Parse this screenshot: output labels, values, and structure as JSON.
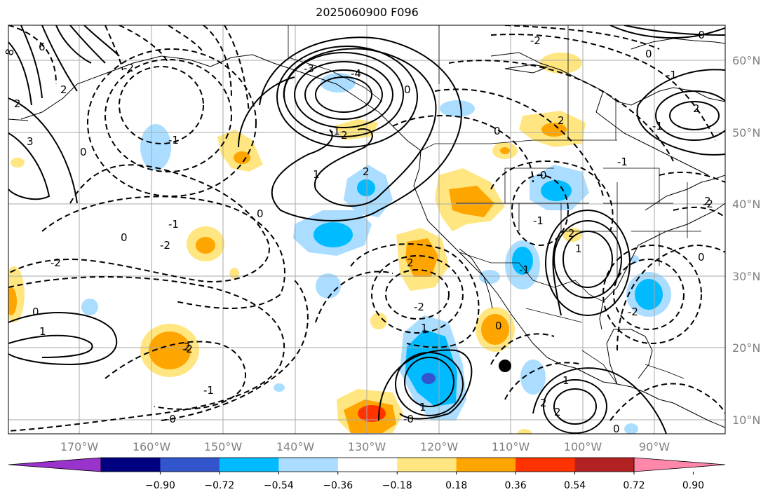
{
  "title": "2025060900 F096",
  "longitude_labels": [
    "170°W",
    "160°W",
    "150°W",
    "140°W",
    "130°W",
    "120°W",
    "110°W",
    "100°W",
    "90°W"
  ],
  "latitude_labels": [
    "60°N",
    "50°N",
    "40°N",
    "30°N",
    "20°N",
    "10°N"
  ],
  "colorbar": {
    "ticks": [
      "−0.90",
      "−0.72",
      "−0.54",
      "−0.36",
      "−0.18",
      "0.18",
      "0.36",
      "0.54",
      "0.72",
      "0.90"
    ],
    "colors": [
      "#9933cc",
      "#000080",
      "#3355cc",
      "#00bbff",
      "#aaddff",
      "#ffffff",
      "#ffe680",
      "#ffa500",
      "#ff3300",
      "#b22222",
      "#ff88aa"
    ]
  },
  "contour_labels": [
    "8",
    "6",
    "2",
    "-2",
    "3",
    "0",
    "2",
    "-3",
    "-4",
    "0",
    "-2",
    "0",
    "-1",
    "1",
    "2",
    "-1",
    "0",
    "2",
    "-1",
    "0",
    "-1",
    "2",
    "-1",
    "-2",
    "2",
    "-1",
    "-2",
    "0",
    "1",
    "-2",
    "-1",
    "-0",
    "1",
    "1",
    "-1",
    "1",
    "-2",
    "0",
    "2",
    "-2",
    "2",
    "-1",
    "2",
    "0",
    "1",
    "-0",
    "-2",
    "2",
    "0",
    "2",
    "0",
    "-0",
    "2",
    "0"
  ],
  "contour_labels_readable": {
    "ak_low": "-3",
    "ak_low2": "-4",
    "west_pos": "1",
    "mid_pac_neg": "0",
    "ne_pac_2": "-2"
  }
}
